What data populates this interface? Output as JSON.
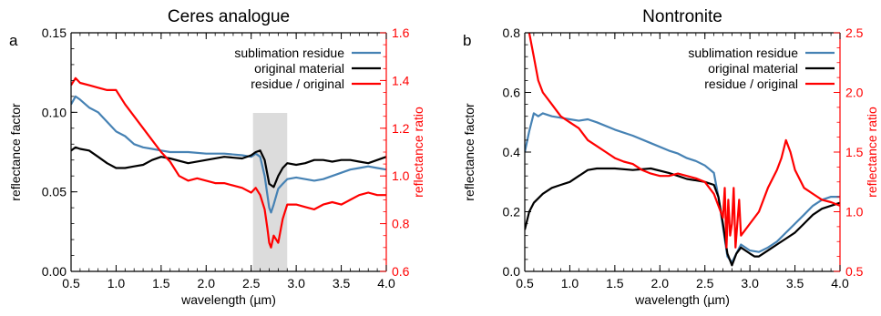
{
  "colors": {
    "sublimation_residue": "#4682b4",
    "original_material": "#000000",
    "ratio": "#ff0000",
    "shade": "#dcdcdc"
  },
  "chart_data": [
    {
      "type": "line",
      "panel_letter": "a",
      "title": "Ceres analogue",
      "xlabel": "wavelength (µm)",
      "ylabel": "reflectance factor",
      "y2label": "reflectance ratio",
      "xlim": [
        0.5,
        4.0
      ],
      "ylim": [
        0.0,
        0.15
      ],
      "y2lim": [
        0.6,
        1.6
      ],
      "x_ticks": [
        0.5,
        1.0,
        1.5,
        2.0,
        2.5,
        3.0,
        3.5,
        4.0
      ],
      "x_tick_labels": [
        "0.5",
        "1.0",
        "1.5",
        "2.0",
        "2.5",
        "3.0",
        "3.5",
        "4.0"
      ],
      "y_ticks": [
        0.0,
        0.05,
        0.1,
        0.15
      ],
      "y_tick_labels": [
        "0.00",
        "0.05",
        "0.10",
        "0.15"
      ],
      "y2_ticks": [
        0.6,
        0.8,
        1.0,
        1.2,
        1.4,
        1.6
      ],
      "y2_tick_labels": [
        "0.6",
        "0.8",
        "1.0",
        "1.2",
        "1.4",
        "1.6"
      ],
      "shaded_region": [
        2.52,
        2.9
      ],
      "legend_position": "top-right",
      "series": [
        {
          "name": "sublimation residue",
          "axis": "left",
          "x": [
            0.5,
            0.55,
            0.6,
            0.7,
            0.8,
            0.9,
            1.0,
            1.1,
            1.2,
            1.3,
            1.4,
            1.5,
            1.6,
            1.8,
            2.0,
            2.2,
            2.4,
            2.5,
            2.55,
            2.6,
            2.65,
            2.7,
            2.72,
            2.75,
            2.8,
            2.85,
            2.9,
            3.0,
            3.1,
            3.2,
            3.3,
            3.4,
            3.5,
            3.6,
            3.7,
            3.8,
            3.9,
            4.0
          ],
          "values": [
            0.105,
            0.11,
            0.108,
            0.103,
            0.1,
            0.094,
            0.088,
            0.085,
            0.08,
            0.078,
            0.077,
            0.076,
            0.075,
            0.075,
            0.074,
            0.074,
            0.073,
            0.072,
            0.074,
            0.072,
            0.06,
            0.04,
            0.037,
            0.042,
            0.052,
            0.055,
            0.058,
            0.059,
            0.058,
            0.057,
            0.058,
            0.06,
            0.062,
            0.064,
            0.065,
            0.066,
            0.065,
            0.064
          ]
        },
        {
          "name": "original material",
          "axis": "left",
          "x": [
            0.5,
            0.55,
            0.6,
            0.7,
            0.8,
            0.9,
            1.0,
            1.1,
            1.2,
            1.3,
            1.4,
            1.5,
            1.6,
            1.8,
            2.0,
            2.2,
            2.4,
            2.5,
            2.55,
            2.6,
            2.65,
            2.7,
            2.75,
            2.8,
            2.85,
            2.9,
            3.0,
            3.1,
            3.2,
            3.3,
            3.4,
            3.5,
            3.6,
            3.7,
            3.8,
            3.9,
            4.0
          ],
          "values": [
            0.076,
            0.078,
            0.077,
            0.076,
            0.072,
            0.068,
            0.065,
            0.065,
            0.066,
            0.067,
            0.07,
            0.072,
            0.071,
            0.068,
            0.07,
            0.072,
            0.071,
            0.073,
            0.075,
            0.076,
            0.07,
            0.055,
            0.053,
            0.06,
            0.065,
            0.068,
            0.067,
            0.068,
            0.07,
            0.07,
            0.069,
            0.07,
            0.07,
            0.069,
            0.068,
            0.07,
            0.072
          ]
        },
        {
          "name": "residue / original",
          "axis": "right",
          "x": [
            0.5,
            0.55,
            0.6,
            0.7,
            0.8,
            0.9,
            1.0,
            1.1,
            1.2,
            1.3,
            1.4,
            1.5,
            1.6,
            1.7,
            1.8,
            1.9,
            2.0,
            2.1,
            2.2,
            2.3,
            2.4,
            2.5,
            2.55,
            2.6,
            2.65,
            2.68,
            2.7,
            2.72,
            2.75,
            2.8,
            2.85,
            2.9,
            3.0,
            3.1,
            3.2,
            3.3,
            3.4,
            3.5,
            3.6,
            3.7,
            3.8,
            3.9,
            4.0
          ],
          "values": [
            1.38,
            1.41,
            1.39,
            1.38,
            1.37,
            1.36,
            1.36,
            1.3,
            1.25,
            1.2,
            1.15,
            1.1,
            1.06,
            1.0,
            0.98,
            0.99,
            0.98,
            0.97,
            0.97,
            0.96,
            0.95,
            0.93,
            0.95,
            0.92,
            0.86,
            0.78,
            0.72,
            0.7,
            0.75,
            0.72,
            0.82,
            0.88,
            0.88,
            0.87,
            0.86,
            0.88,
            0.89,
            0.88,
            0.9,
            0.92,
            0.93,
            0.92,
            0.92
          ]
        }
      ]
    },
    {
      "type": "line",
      "panel_letter": "b",
      "title": "Nontronite",
      "xlabel": "wavelength (µm)",
      "ylabel": "reflectance factor",
      "y2label": "reflectance ratio",
      "xlim": [
        0.5,
        4.0
      ],
      "ylim": [
        0.0,
        0.8
      ],
      "y2lim": [
        0.5,
        2.5
      ],
      "x_ticks": [
        0.5,
        1.0,
        1.5,
        2.0,
        2.5,
        3.0,
        3.5,
        4.0
      ],
      "x_tick_labels": [
        "0.5",
        "1.0",
        "1.5",
        "2.0",
        "2.5",
        "3.0",
        "3.5",
        "4.0"
      ],
      "y_ticks": [
        0.0,
        0.2,
        0.4,
        0.6,
        0.8
      ],
      "y_tick_labels": [
        "0.0",
        "0.2",
        "0.4",
        "0.6",
        "0.8"
      ],
      "y2_ticks": [
        0.5,
        1.0,
        1.5,
        2.0,
        2.5
      ],
      "y2_tick_labels": [
        "0.5",
        "1.0",
        "1.5",
        "2.0",
        "2.5"
      ],
      "legend_position": "top-right",
      "series": [
        {
          "name": "sublimation residue",
          "axis": "left",
          "x": [
            0.5,
            0.55,
            0.6,
            0.65,
            0.7,
            0.8,
            0.9,
            1.0,
            1.1,
            1.2,
            1.3,
            1.5,
            1.7,
            1.9,
            2.1,
            2.2,
            2.3,
            2.4,
            2.5,
            2.6,
            2.65,
            2.7,
            2.75,
            2.8,
            2.85,
            2.9,
            3.0,
            3.1,
            3.2,
            3.3,
            3.4,
            3.5,
            3.6,
            3.7,
            3.8,
            3.9,
            4.0
          ],
          "values": [
            0.4,
            0.47,
            0.53,
            0.52,
            0.53,
            0.52,
            0.515,
            0.51,
            0.505,
            0.51,
            0.5,
            0.475,
            0.455,
            0.43,
            0.405,
            0.395,
            0.38,
            0.37,
            0.355,
            0.33,
            0.25,
            0.15,
            0.05,
            0.03,
            0.06,
            0.09,
            0.07,
            0.065,
            0.08,
            0.1,
            0.13,
            0.16,
            0.19,
            0.22,
            0.24,
            0.25,
            0.25
          ]
        },
        {
          "name": "original material",
          "axis": "left",
          "x": [
            0.5,
            0.55,
            0.6,
            0.7,
            0.8,
            0.9,
            1.0,
            1.1,
            1.2,
            1.3,
            1.4,
            1.5,
            1.7,
            1.9,
            2.1,
            2.2,
            2.3,
            2.4,
            2.5,
            2.6,
            2.65,
            2.7,
            2.75,
            2.8,
            2.85,
            2.9,
            3.0,
            3.05,
            3.1,
            3.2,
            3.3,
            3.4,
            3.5,
            3.6,
            3.7,
            3.8,
            3.9,
            4.0
          ],
          "values": [
            0.14,
            0.2,
            0.23,
            0.26,
            0.28,
            0.29,
            0.3,
            0.32,
            0.34,
            0.345,
            0.345,
            0.345,
            0.34,
            0.345,
            0.33,
            0.32,
            0.31,
            0.305,
            0.3,
            0.29,
            0.25,
            0.16,
            0.06,
            0.02,
            0.06,
            0.08,
            0.06,
            0.05,
            0.05,
            0.07,
            0.09,
            0.11,
            0.13,
            0.16,
            0.19,
            0.21,
            0.22,
            0.23
          ]
        },
        {
          "name": "residue / original",
          "axis": "right",
          "x": [
            0.5,
            0.55,
            0.6,
            0.65,
            0.7,
            0.8,
            0.9,
            1.0,
            1.1,
            1.2,
            1.3,
            1.4,
            1.5,
            1.6,
            1.7,
            1.8,
            1.9,
            2.0,
            2.1,
            2.2,
            2.3,
            2.4,
            2.5,
            2.6,
            2.7,
            2.72,
            2.74,
            2.76,
            2.78,
            2.8,
            2.82,
            2.84,
            2.86,
            2.88,
            2.9,
            3.0,
            3.1,
            3.2,
            3.3,
            3.35,
            3.4,
            3.45,
            3.5,
            3.6,
            3.7,
            3.8,
            3.9,
            4.0
          ],
          "values": [
            2.6,
            2.5,
            2.3,
            2.1,
            2.0,
            1.9,
            1.8,
            1.75,
            1.7,
            1.6,
            1.55,
            1.5,
            1.45,
            1.42,
            1.4,
            1.35,
            1.32,
            1.3,
            1.3,
            1.32,
            1.3,
            1.28,
            1.25,
            1.15,
            0.95,
            1.2,
            0.7,
            1.1,
            0.8,
            0.9,
            1.2,
            0.7,
            0.9,
            1.1,
            0.8,
            0.9,
            1.0,
            1.2,
            1.35,
            1.45,
            1.6,
            1.5,
            1.35,
            1.2,
            1.15,
            1.1,
            1.08,
            1.05
          ]
        }
      ]
    }
  ]
}
